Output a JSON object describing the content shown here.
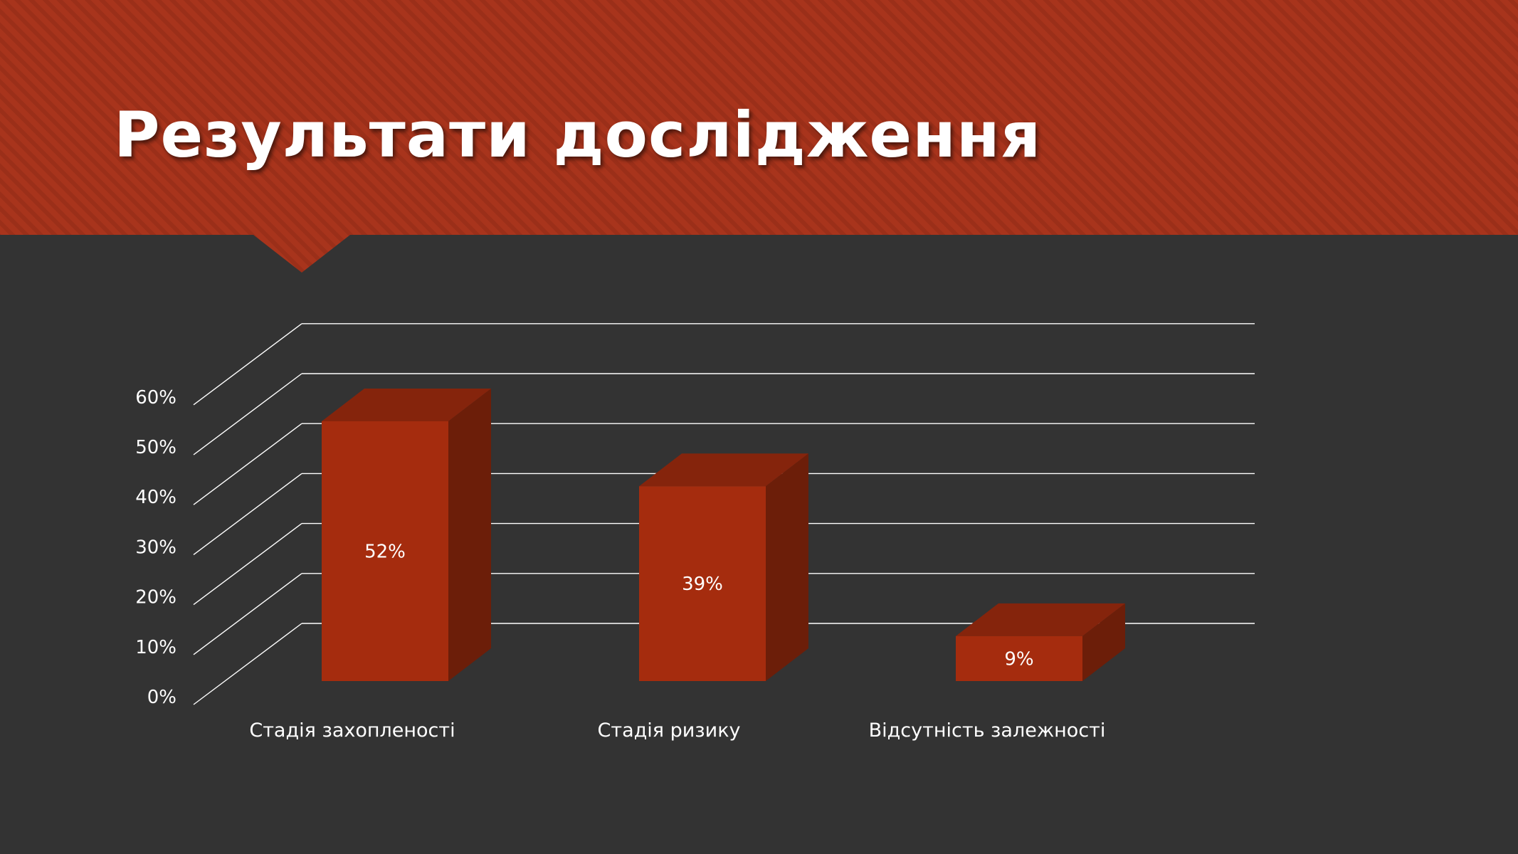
{
  "slide": {
    "title": "Результати дослідження"
  },
  "colors": {
    "background": "#333333",
    "header": "#a8341c",
    "bar_front": "#a52c0e",
    "bar_side": "#6c1e09",
    "bar_top": "#85240c",
    "gridline": "#ffffff",
    "text": "#ffffff"
  },
  "chart_data": {
    "type": "bar",
    "style": "3d-column",
    "categories": [
      "Стадія захопленості",
      "Стадія ризику",
      "Відсутність залежності"
    ],
    "values": [
      52,
      39,
      9
    ],
    "data_labels": [
      "52%",
      "39%",
      "9%"
    ],
    "y_ticks": [
      "0%",
      "10%",
      "20%",
      "30%",
      "40%",
      "50%",
      "60%"
    ],
    "ylim": [
      0,
      60
    ],
    "grid": true,
    "legend": false,
    "title": ""
  }
}
